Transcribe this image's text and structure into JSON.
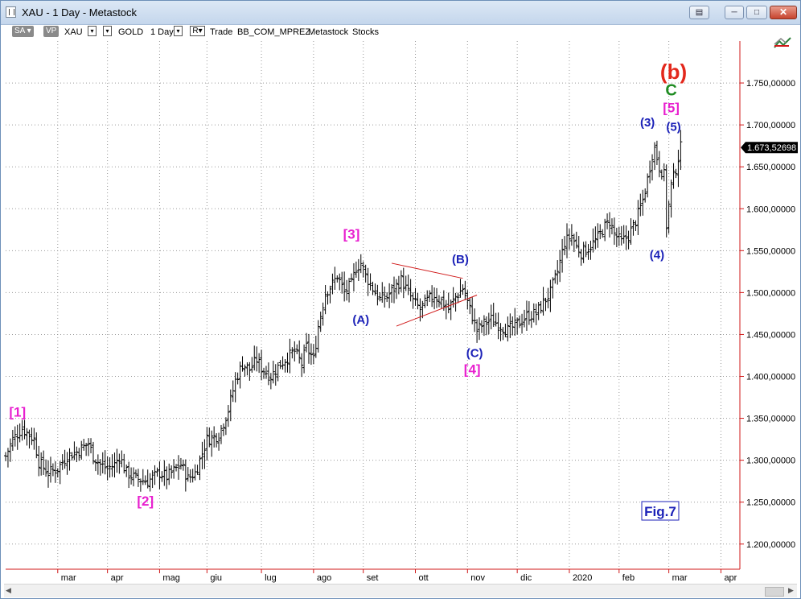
{
  "window": {
    "title": "XAU - 1 Day - Metastock",
    "colors": {
      "titlebar": "#c8d9ee",
      "close": "#c7442e"
    }
  },
  "toolbar": {
    "items": [
      "SA",
      "VP",
      "XAU",
      "GOLD",
      "1 Day",
      "R",
      "Trade",
      "BB_COM_MPREZ",
      "Metastock",
      "Stocks"
    ]
  },
  "chart_data": {
    "type": "bar",
    "subtype": "ohlc",
    "symbol": "XAU",
    "interval": "1 Day",
    "grid": true,
    "last_price_label": "1.673,52698",
    "ylim": [
      1170,
      1800
    ],
    "y_ticks": [
      "1.200,00000",
      "1.250,00000",
      "1.300,00000",
      "1.350,00000",
      "1.400,00000",
      "1.450,00000",
      "1.500,00000",
      "1.550,00000",
      "1.600,00000",
      "1.650,00000",
      "1.700,00000",
      "1.750,00000"
    ],
    "y_tick_values": [
      1200,
      1250,
      1300,
      1350,
      1400,
      1450,
      1500,
      1550,
      1600,
      1650,
      1700,
      1750
    ],
    "x_ticks": [
      "mar",
      "apr",
      "mag",
      "giu",
      "lug",
      "ago",
      "set",
      "ott",
      "nov",
      "dic",
      "2020",
      "feb",
      "mar",
      "apr"
    ],
    "x_tick_index": [
      22,
      43,
      65,
      85,
      108,
      130,
      151,
      173,
      195,
      216,
      238,
      259,
      280,
      302
    ],
    "x_range": [
      0,
      310
    ],
    "anchors": [
      [
        0,
        1305
      ],
      [
        3,
        1325
      ],
      [
        7,
        1338
      ],
      [
        12,
        1325
      ],
      [
        14,
        1298
      ],
      [
        18,
        1285
      ],
      [
        22,
        1290
      ],
      [
        26,
        1305
      ],
      [
        30,
        1310
      ],
      [
        35,
        1320
      ],
      [
        37,
        1305
      ],
      [
        40,
        1295
      ],
      [
        43,
        1290
      ],
      [
        46,
        1295
      ],
      [
        48,
        1305
      ],
      [
        51,
        1285
      ],
      [
        55,
        1278
      ],
      [
        60,
        1275
      ],
      [
        65,
        1285
      ],
      [
        68,
        1280
      ],
      [
        72,
        1290
      ],
      [
        74,
        1295
      ],
      [
        77,
        1278
      ],
      [
        80,
        1285
      ],
      [
        82,
        1300
      ],
      [
        85,
        1325
      ],
      [
        90,
        1330
      ],
      [
        94,
        1360
      ],
      [
        97,
        1395
      ],
      [
        100,
        1415
      ],
      [
        103,
        1408
      ],
      [
        106,
        1420
      ],
      [
        108,
        1410
      ],
      [
        112,
        1400
      ],
      [
        116,
        1415
      ],
      [
        118,
        1420
      ],
      [
        122,
        1430
      ],
      [
        125,
        1415
      ],
      [
        127,
        1435
      ],
      [
        130,
        1420
      ],
      [
        132,
        1460
      ],
      [
        135,
        1500
      ],
      [
        138,
        1510
      ],
      [
        140,
        1520
      ],
      [
        143,
        1500
      ],
      [
        146,
        1510
      ],
      [
        148,
        1530
      ],
      [
        150,
        1535
      ],
      [
        152,
        1520
      ],
      [
        155,
        1505
      ],
      [
        158,
        1492
      ],
      [
        161,
        1495
      ],
      [
        164,
        1505
      ],
      [
        167,
        1515
      ],
      [
        169,
        1505
      ],
      [
        172,
        1490
      ],
      [
        175,
        1480
      ],
      [
        178,
        1490
      ],
      [
        181,
        1497
      ],
      [
        184,
        1490
      ],
      [
        187,
        1480
      ],
      [
        190,
        1495
      ],
      [
        193,
        1505
      ],
      [
        196,
        1480
      ],
      [
        199,
        1455
      ],
      [
        202,
        1463
      ],
      [
        205,
        1468
      ],
      [
        208,
        1462
      ],
      [
        212,
        1455
      ],
      [
        216,
        1462
      ],
      [
        220,
        1472
      ],
      [
        224,
        1475
      ],
      [
        227,
        1488
      ],
      [
        230,
        1500
      ],
      [
        233,
        1525
      ],
      [
        236,
        1560
      ],
      [
        239,
        1568
      ],
      [
        241,
        1555
      ],
      [
        243,
        1548
      ],
      [
        246,
        1553
      ],
      [
        250,
        1565
      ],
      [
        252,
        1575
      ],
      [
        255,
        1585
      ],
      [
        257,
        1570
      ],
      [
        260,
        1560
      ],
      [
        263,
        1568
      ],
      [
        266,
        1585
      ],
      [
        269,
        1610
      ],
      [
        271,
        1635
      ],
      [
        273,
        1665
      ],
      [
        274,
        1672
      ],
      [
        276,
        1650
      ],
      [
        278,
        1640
      ],
      [
        279,
        1580
      ],
      [
        281,
        1628
      ],
      [
        283,
        1648
      ],
      [
        285,
        1673
      ]
    ],
    "trendlines": [
      {
        "x": [
          163,
          193
        ],
        "y": [
          1535,
          1517
        ]
      },
      {
        "x": [
          165,
          199
        ],
        "y": [
          1460,
          1497
        ]
      }
    ],
    "annotations": [
      {
        "text": "[1]",
        "x": 5,
        "y": 1352,
        "color": "#e81fcf"
      },
      {
        "text": "[2]",
        "x": 59,
        "y": 1246,
        "color": "#e81fcf"
      },
      {
        "text": "[3]",
        "x": 146,
        "y": 1564,
        "color": "#e81fcf"
      },
      {
        "text": "(A)",
        "x": 150,
        "y": 1463,
        "color": "#1c22b8"
      },
      {
        "text": "(B)",
        "x": 192,
        "y": 1535,
        "color": "#1c22b8"
      },
      {
        "text": "(C)",
        "x": 198,
        "y": 1423,
        "color": "#1c22b8"
      },
      {
        "text": "[4]",
        "x": 197,
        "y": 1403,
        "color": "#e81fcf"
      },
      {
        "text": "(3)",
        "x": 271,
        "y": 1698,
        "color": "#1c22b8"
      },
      {
        "text": "(4)",
        "x": 275,
        "y": 1540,
        "color": "#1c22b8"
      },
      {
        "text": "(5)",
        "x": 282,
        "y": 1693,
        "color": "#1c22b8"
      },
      {
        "text": "[5]",
        "x": 281,
        "y": 1715,
        "color": "#e81fcf"
      },
      {
        "text": "C",
        "x": 281,
        "y": 1735,
        "color": "#1f8c22"
      },
      {
        "text": "(b)",
        "x": 282,
        "y": 1755,
        "color": "#e3281c"
      }
    ],
    "fig_label": "Fig.7"
  }
}
